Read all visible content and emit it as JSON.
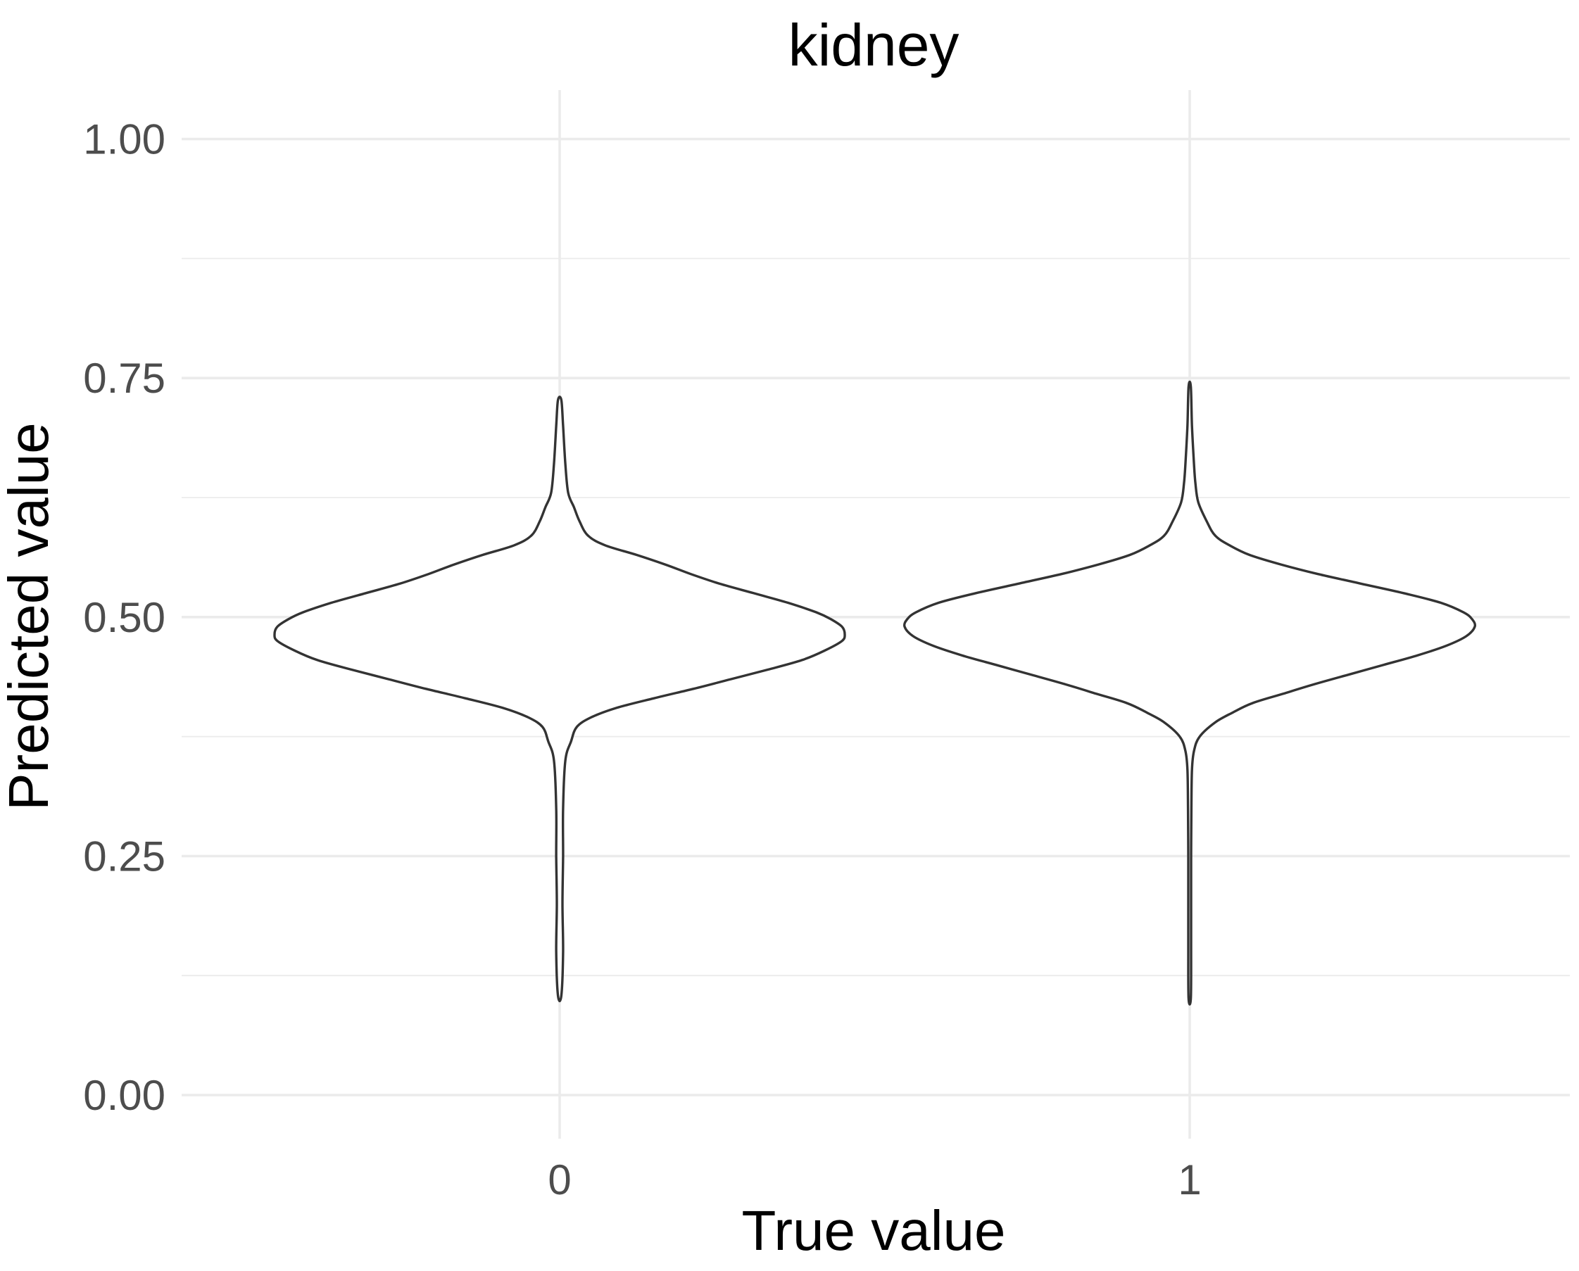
{
  "chart_data": {
    "type": "violin",
    "title": "kidney",
    "xlabel": "True value",
    "ylabel": "Predicted value",
    "categories": [
      "0",
      "1"
    ],
    "ylim": [
      -0.05,
      1.05
    ],
    "y_ticks": [
      0.0,
      0.25,
      0.5,
      0.75,
      1.0
    ],
    "y_tick_labels": [
      "0.00",
      "0.25",
      "0.50",
      "0.75",
      "1.00"
    ],
    "y_minor_ticks": [
      0.125,
      0.375,
      0.625,
      0.875
    ],
    "grid": true,
    "series": [
      {
        "category": "0",
        "min": 0.104,
        "max": 0.727,
        "density_profile": [
          [
            0.104,
            0.006
          ],
          [
            0.15,
            0.012
          ],
          [
            0.2,
            0.01
          ],
          [
            0.25,
            0.012
          ],
          [
            0.3,
            0.012
          ],
          [
            0.35,
            0.02
          ],
          [
            0.37,
            0.04
          ],
          [
            0.385,
            0.06
          ],
          [
            0.395,
            0.11
          ],
          [
            0.405,
            0.2
          ],
          [
            0.415,
            0.33
          ],
          [
            0.425,
            0.47
          ],
          [
            0.435,
            0.6
          ],
          [
            0.445,
            0.73
          ],
          [
            0.455,
            0.85
          ],
          [
            0.465,
            0.93
          ],
          [
            0.475,
            0.99
          ],
          [
            0.482,
            1.0
          ],
          [
            0.49,
            0.99
          ],
          [
            0.498,
            0.95
          ],
          [
            0.505,
            0.9
          ],
          [
            0.515,
            0.8
          ],
          [
            0.525,
            0.68
          ],
          [
            0.535,
            0.56
          ],
          [
            0.545,
            0.46
          ],
          [
            0.555,
            0.37
          ],
          [
            0.565,
            0.27
          ],
          [
            0.575,
            0.16
          ],
          [
            0.585,
            0.1
          ],
          [
            0.6,
            0.07
          ],
          [
            0.615,
            0.05
          ],
          [
            0.63,
            0.03
          ],
          [
            0.66,
            0.02
          ],
          [
            0.7,
            0.012
          ],
          [
            0.727,
            0.006
          ]
        ]
      },
      {
        "category": "1",
        "min": 0.101,
        "max": 0.741,
        "density_profile": [
          [
            0.101,
            0.004
          ],
          [
            0.15,
            0.005
          ],
          [
            0.2,
            0.005
          ],
          [
            0.25,
            0.005
          ],
          [
            0.3,
            0.006
          ],
          [
            0.34,
            0.008
          ],
          [
            0.36,
            0.015
          ],
          [
            0.375,
            0.035
          ],
          [
            0.39,
            0.09
          ],
          [
            0.4,
            0.15
          ],
          [
            0.41,
            0.22
          ],
          [
            0.42,
            0.33
          ],
          [
            0.43,
            0.44
          ],
          [
            0.44,
            0.56
          ],
          [
            0.45,
            0.68
          ],
          [
            0.46,
            0.8
          ],
          [
            0.47,
            0.9
          ],
          [
            0.48,
            0.97
          ],
          [
            0.49,
            1.0
          ],
          [
            0.498,
            0.99
          ],
          [
            0.505,
            0.96
          ],
          [
            0.515,
            0.88
          ],
          [
            0.525,
            0.75
          ],
          [
            0.535,
            0.6
          ],
          [
            0.545,
            0.45
          ],
          [
            0.555,
            0.32
          ],
          [
            0.565,
            0.21
          ],
          [
            0.575,
            0.14
          ],
          [
            0.585,
            0.09
          ],
          [
            0.6,
            0.06
          ],
          [
            0.62,
            0.03
          ],
          [
            0.64,
            0.02
          ],
          [
            0.66,
            0.015
          ],
          [
            0.7,
            0.008
          ],
          [
            0.741,
            0.004
          ]
        ]
      }
    ]
  }
}
